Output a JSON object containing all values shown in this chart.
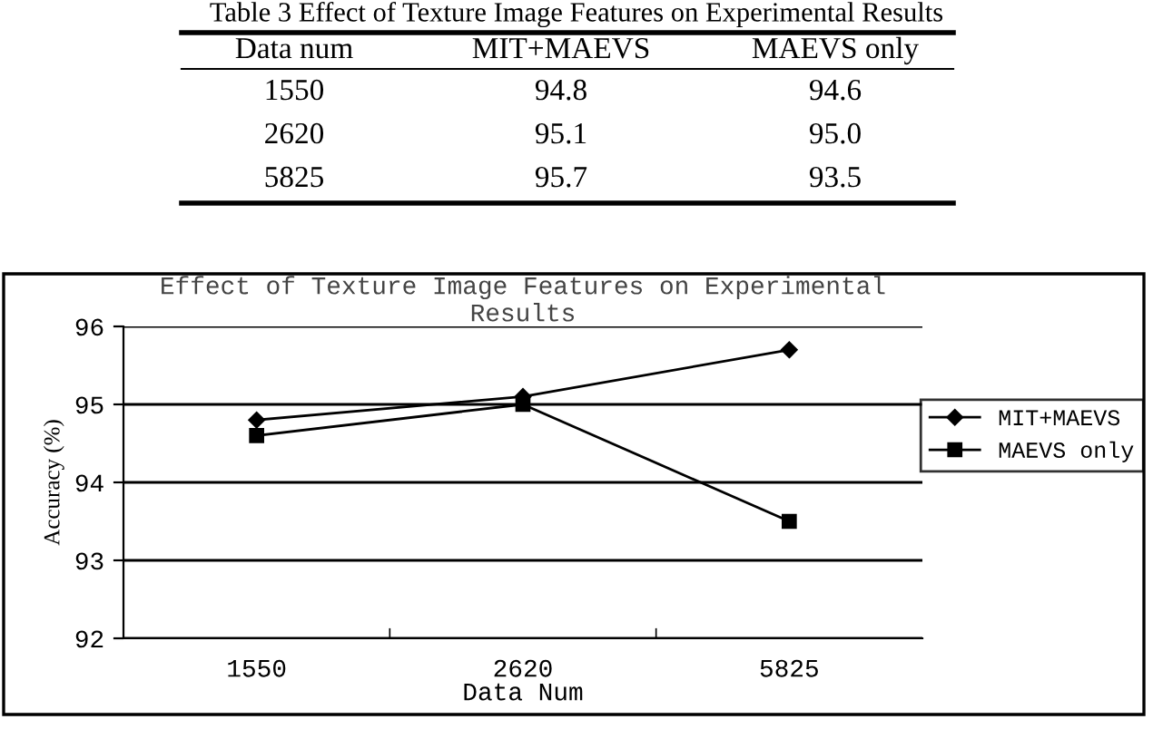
{
  "chart_data": [
    {
      "type": "other",
      "title": "Table 3 Effect of Texture Image Features on Experimental Results",
      "annotations": [
        "Data num",
        "MIT+MAEVS",
        "MAEVS only",
        "1550",
        "94.8",
        "94.6",
        "2620",
        "95.1",
        "95.0",
        "5825",
        "95.7",
        "93.5"
      ]
    },
    {
      "type": "line",
      "title": "Effect of Texture Image Features on Experimental\nResults",
      "xlabel": "Data Num",
      "ylabel": "Accuracy (%)",
      "categories": [
        "1550",
        "2620",
        "5825"
      ],
      "series": [
        {
          "name": "MIT+MAEVS",
          "color": "#000000",
          "marker": "diamond",
          "values": [
            94.8,
            95.1,
            95.7
          ]
        },
        {
          "name": "MAEVS only",
          "color": "#000000",
          "marker": "square",
          "values": [
            94.6,
            95.0,
            93.5
          ]
        }
      ],
      "ylim": [
        92,
        96
      ],
      "yticks": [
        92,
        93,
        94,
        95,
        96
      ],
      "grid": "y",
      "legend": "right",
      "line_style": "solid"
    }
  ]
}
